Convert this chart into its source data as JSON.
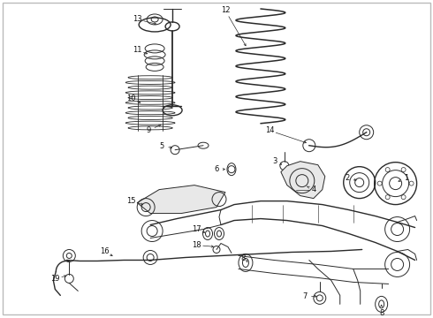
{
  "background_color": "#ffffff",
  "border_color": "#bbbbbb",
  "fig_width": 4.9,
  "fig_height": 3.6,
  "dpi": 100,
  "line_color": "#2a2a2a",
  "label_color": "#111111",
  "label_fontsize": 6.0,
  "border_lw": 1.0
}
